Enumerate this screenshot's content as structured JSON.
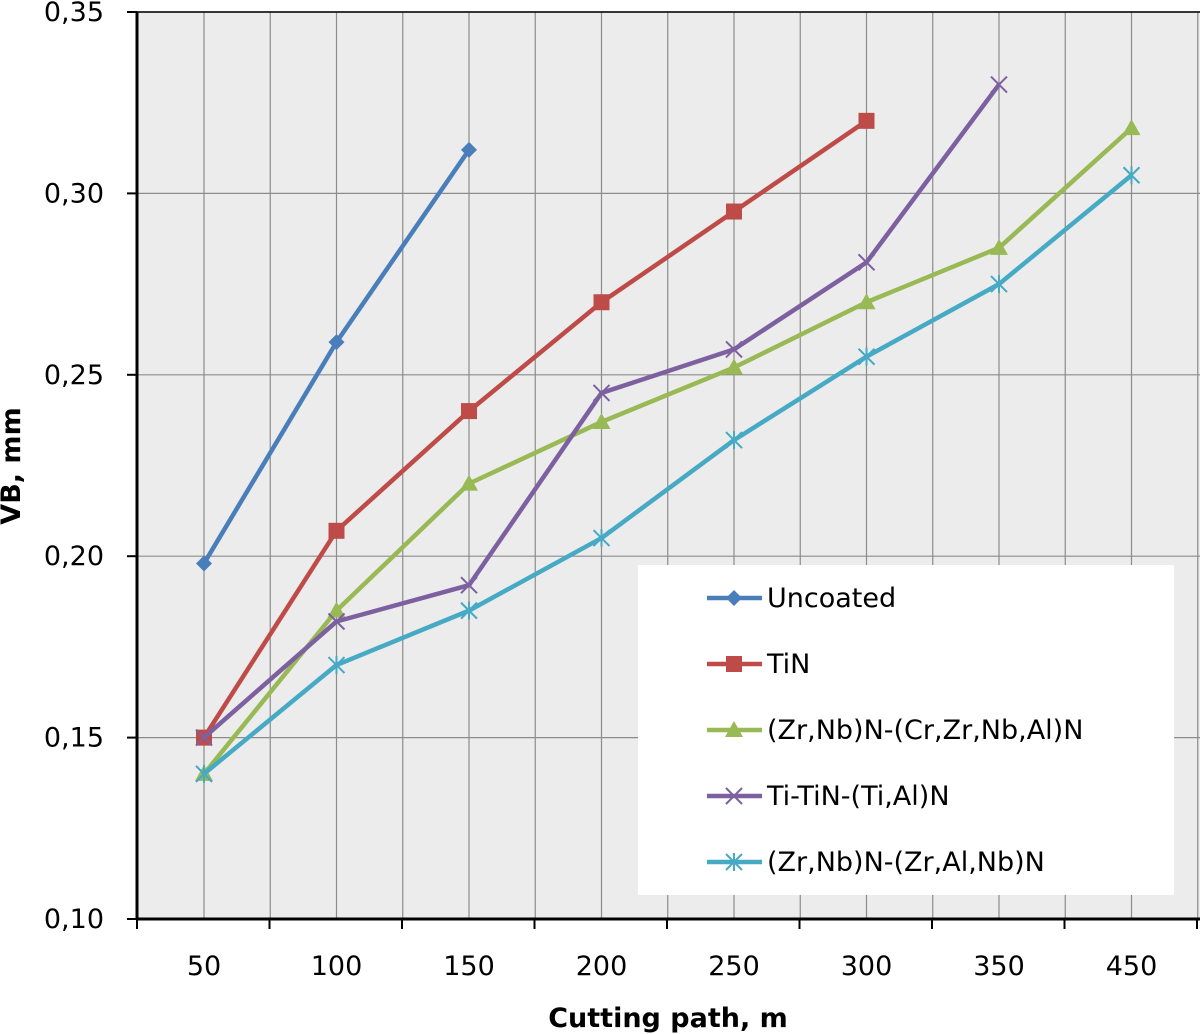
{
  "chart_data": {
    "type": "line",
    "xlabel": "Cutting path, m",
    "ylabel": "VB, mm",
    "categories": [
      "50",
      "100",
      "150",
      "200",
      "250",
      "300",
      "350",
      "450"
    ],
    "ylim": [
      0.1,
      0.35
    ],
    "yticks": [
      "0,10",
      "0,15",
      "0,20",
      "0,25",
      "0,30",
      "0,35"
    ],
    "ytick_values": [
      0.1,
      0.15,
      0.2,
      0.25,
      0.3,
      0.35
    ],
    "grid": true,
    "legend_position": "bottom-right",
    "series": [
      {
        "name": "Uncoated",
        "color": "#4a7ebb",
        "marker": "diamond",
        "values": [
          0.198,
          0.259,
          0.312,
          null,
          null,
          null,
          null,
          null
        ]
      },
      {
        "name": "TiN",
        "color": "#be4b48",
        "marker": "square",
        "values": [
          0.15,
          0.207,
          0.24,
          0.27,
          0.295,
          0.32,
          null,
          null
        ]
      },
      {
        "name": "(Zr,Nb)N-(Cr,Zr,Nb,Al)N",
        "color": "#98b954",
        "marker": "triangle",
        "values": [
          0.14,
          0.185,
          0.22,
          0.237,
          0.252,
          0.27,
          0.285,
          0.318
        ]
      },
      {
        "name": "Ti-TiN-(Ti,Al)N",
        "color": "#7d60a0",
        "marker": "x",
        "values": [
          0.15,
          0.182,
          0.192,
          0.245,
          0.257,
          0.281,
          0.33,
          null
        ]
      },
      {
        "name": "(Zr,Nb)N-(Zr,Al,Nb)N",
        "color": "#46aac5",
        "marker": "star",
        "values": [
          0.14,
          0.17,
          0.185,
          0.205,
          0.232,
          0.255,
          0.275,
          0.305
        ]
      }
    ]
  }
}
